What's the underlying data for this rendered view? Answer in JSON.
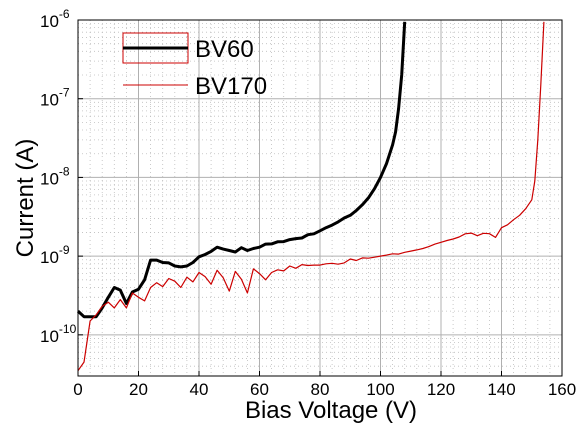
{
  "chart_data": {
    "type": "line",
    "xlabel": "Bias Voltage (V)",
    "ylabel": "Current (A)",
    "xlim": [
      0,
      160
    ],
    "ylim": [
      3e-11,
      1e-06
    ],
    "yscale": "log",
    "grid": true,
    "legend_position": "top-left",
    "x_ticks": [
      "0",
      "20",
      "40",
      "60",
      "80",
      "100",
      "120",
      "140",
      "160"
    ],
    "y_ticks": [
      {
        "base": "10",
        "exp": "-10",
        "value": 1e-10
      },
      {
        "base": "10",
        "exp": "-9",
        "value": 1e-09
      },
      {
        "base": "10",
        "exp": "-8",
        "value": 1e-08
      },
      {
        "base": "10",
        "exp": "-7",
        "value": 1e-07
      },
      {
        "base": "10",
        "exp": "-6",
        "value": 1e-06
      }
    ],
    "series": [
      {
        "name": "BV60",
        "color": "#000000",
        "points": [
          [
            0,
            2e-10
          ],
          [
            2,
            1.7e-10
          ],
          [
            4,
            1.7e-10
          ],
          [
            6,
            1.7e-10
          ],
          [
            8,
            2.2e-10
          ],
          [
            10,
            3e-10
          ],
          [
            12,
            4e-10
          ],
          [
            14,
            3.7e-10
          ],
          [
            16,
            2.5e-10
          ],
          [
            18,
            3.5e-10
          ],
          [
            20,
            3.8e-10
          ],
          [
            22,
            5e-10
          ],
          [
            24,
            8.9e-10
          ],
          [
            26,
            8.9e-10
          ],
          [
            28,
            8.3e-10
          ],
          [
            30,
            8.2e-10
          ],
          [
            32,
            7.5e-10
          ],
          [
            34,
            7.3e-10
          ],
          [
            36,
            7.5e-10
          ],
          [
            38,
            8.3e-10
          ],
          [
            40,
            9.8e-10
          ],
          [
            42,
            1.05e-09
          ],
          [
            44,
            1.15e-09
          ],
          [
            46,
            1.3e-09
          ],
          [
            48,
            1.23e-09
          ],
          [
            50,
            1.18e-09
          ],
          [
            52,
            1.13e-09
          ],
          [
            54,
            1.28e-09
          ],
          [
            56,
            1.18e-09
          ],
          [
            58,
            1.25e-09
          ],
          [
            60,
            1.3e-09
          ],
          [
            62,
            1.42e-09
          ],
          [
            64,
            1.43e-09
          ],
          [
            66,
            1.52e-09
          ],
          [
            68,
            1.53e-09
          ],
          [
            70,
            1.62e-09
          ],
          [
            72,
            1.67e-09
          ],
          [
            74,
            1.7e-09
          ],
          [
            76,
            1.87e-09
          ],
          [
            78,
            1.92e-09
          ],
          [
            80,
            2.1e-09
          ],
          [
            82,
            2.3e-09
          ],
          [
            84,
            2.48e-09
          ],
          [
            86,
            2.72e-09
          ],
          [
            88,
            3.05e-09
          ],
          [
            90,
            3.3e-09
          ],
          [
            92,
            3.8e-09
          ],
          [
            94,
            4.5e-09
          ],
          [
            96,
            5.5e-09
          ],
          [
            98,
            7.2e-09
          ],
          [
            100,
            1e-08
          ],
          [
            102,
            1.5e-08
          ],
          [
            104,
            2.6e-08
          ],
          [
            105,
            3.8e-08
          ],
          [
            106,
            7.5e-08
          ],
          [
            107,
            2e-07
          ],
          [
            108,
            9.5e-07
          ]
        ]
      },
      {
        "name": "BV170",
        "color": "#cc0000",
        "points": [
          [
            0,
            3.5e-11
          ],
          [
            2,
            4.5e-11
          ],
          [
            4,
            1.5e-10
          ],
          [
            6,
            1.8e-10
          ],
          [
            8,
            2.3e-10
          ],
          [
            10,
            2.6e-10
          ],
          [
            12,
            2.2e-10
          ],
          [
            14,
            2.8e-10
          ],
          [
            16,
            2.2e-10
          ],
          [
            18,
            3.4e-10
          ],
          [
            20,
            3e-10
          ],
          [
            22,
            2.7e-10
          ],
          [
            24,
            4e-10
          ],
          [
            26,
            4.6e-10
          ],
          [
            28,
            4.1e-10
          ],
          [
            30,
            5.2e-10
          ],
          [
            32,
            4.8e-10
          ],
          [
            34,
            4e-10
          ],
          [
            36,
            5.4e-10
          ],
          [
            38,
            4.7e-10
          ],
          [
            40,
            6.2e-10
          ],
          [
            42,
            5.5e-10
          ],
          [
            44,
            4.4e-10
          ],
          [
            46,
            6.6e-10
          ],
          [
            48,
            5.3e-10
          ],
          [
            50,
            3.6e-10
          ],
          [
            52,
            6.4e-10
          ],
          [
            54,
            5.1e-10
          ],
          [
            56,
            3.4e-10
          ],
          [
            58,
            6.9e-10
          ],
          [
            60,
            6e-10
          ],
          [
            62,
            5e-10
          ],
          [
            64,
            6.2e-10
          ],
          [
            66,
            6.7e-10
          ],
          [
            68,
            6.5e-10
          ],
          [
            70,
            7.5e-10
          ],
          [
            72,
            7e-10
          ],
          [
            74,
            7.8e-10
          ],
          [
            76,
            7.6e-10
          ],
          [
            78,
            7.7e-10
          ],
          [
            80,
            7.7e-10
          ],
          [
            82,
            8e-10
          ],
          [
            84,
            8.1e-10
          ],
          [
            86,
            7.9e-10
          ],
          [
            88,
            8.2e-10
          ],
          [
            90,
            9.2e-10
          ],
          [
            92,
            8.8e-10
          ],
          [
            94,
            9.5e-10
          ],
          [
            96,
            9.4e-10
          ],
          [
            98,
            9.7e-10
          ],
          [
            100,
            1e-09
          ],
          [
            102,
            1.03e-09
          ],
          [
            104,
            1.07e-09
          ],
          [
            106,
            1.06e-09
          ],
          [
            108,
            1.12e-09
          ],
          [
            110,
            1.16e-09
          ],
          [
            112,
            1.2e-09
          ],
          [
            114,
            1.25e-09
          ],
          [
            116,
            1.32e-09
          ],
          [
            118,
            1.42e-09
          ],
          [
            120,
            1.5e-09
          ],
          [
            122,
            1.58e-09
          ],
          [
            124,
            1.65e-09
          ],
          [
            126,
            1.75e-09
          ],
          [
            128,
            1.92e-09
          ],
          [
            130,
            1.96e-09
          ],
          [
            132,
            1.82e-09
          ],
          [
            134,
            1.95e-09
          ],
          [
            136,
            1.93e-09
          ],
          [
            138,
            1.73e-09
          ],
          [
            140,
            2.3e-09
          ],
          [
            142,
            2.5e-09
          ],
          [
            144,
            2.9e-09
          ],
          [
            146,
            3.3e-09
          ],
          [
            148,
            4e-09
          ],
          [
            150,
            5.2e-09
          ],
          [
            151,
            9e-09
          ],
          [
            152,
            3e-08
          ],
          [
            153,
            1.5e-07
          ],
          [
            154,
            9.5e-07
          ]
        ]
      }
    ]
  }
}
